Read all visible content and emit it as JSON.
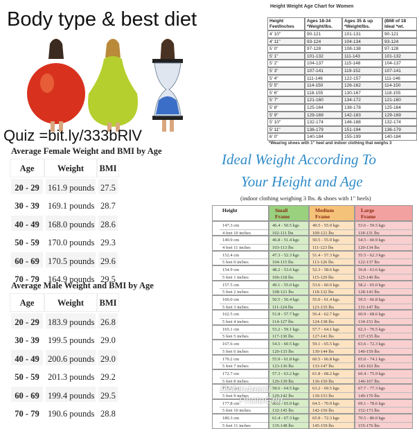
{
  "collage": {
    "title": "Body type & best diet",
    "quiz": "Quiz =bit.ly/333bRlV",
    "female_table": {
      "title": "Average Female Weight and BMI by Age",
      "header": [
        "Age",
        "Weight",
        "BMI"
      ],
      "rows": [
        [
          "20 - 29",
          "161.9 pounds",
          "27.5"
        ],
        [
          "30 - 39",
          "169.1 pounds",
          "28.7"
        ],
        [
          "40 - 49",
          "168.0 pounds",
          "28.6"
        ],
        [
          "50 - 59",
          "170.0 pounds",
          "29.3"
        ],
        [
          "60 - 69",
          "170.5 pounds",
          "29.6"
        ],
        [
          "70 - 79",
          "164.9 pounds",
          "29.5"
        ]
      ]
    },
    "male_table": {
      "title": "Average Male Weight and BMI by Age",
      "header": [
        "Age",
        "Weight",
        "BMI"
      ],
      "rows": [
        [
          "20 - 29",
          "183.9 pounds",
          "26.8"
        ],
        [
          "30 - 39",
          "199.5 pounds",
          "29.0"
        ],
        [
          "40 - 49",
          "200.6 pounds",
          "29.0"
        ],
        [
          "50 - 59",
          "201.3 pounds",
          "29.2"
        ],
        [
          "60 - 69",
          "199.4 pounds",
          "29.5"
        ],
        [
          "70 - 79",
          "190.6 pounds",
          "28.8"
        ]
      ]
    },
    "women_chart": {
      "title": "Height Weight Age Chart for Women",
      "header": [
        [
          "Height",
          "Feet/Inches"
        ],
        [
          "Ages 18-34",
          "*Weight/lbs."
        ],
        [
          "Ages 35 & up",
          "*Weight/lbs."
        ],
        [
          "(BMI of 18",
          "Ideal *wt."
        ]
      ],
      "rows": [
        [
          "4' 10\"",
          "90-121",
          "101-131",
          "90-121"
        ],
        [
          "4' 11\"",
          "93-124",
          "104-134",
          "93-124"
        ],
        [
          "5' 0\"",
          "97-128",
          "108-138",
          "97-128"
        ],
        [
          "5' 1\"",
          "101-132",
          "111-143",
          "101-132"
        ],
        [
          "5' 2\"",
          "104-137",
          "115-148",
          "104-137"
        ],
        [
          "5' 3\"",
          "107-141",
          "119-152",
          "107-141"
        ],
        [
          "5' 4\"",
          "111-146",
          "122-157",
          "111-146"
        ],
        [
          "5' 5\"",
          "114-150",
          "126-162",
          "114-150"
        ],
        [
          "5' 6\"",
          "118-155",
          "130-167",
          "118-155"
        ],
        [
          "5' 7\"",
          "121-160",
          "134-172",
          "121-160"
        ],
        [
          "5' 8\"",
          "125-164",
          "138-178",
          "125-164"
        ],
        [
          "5' 9\"",
          "129-169",
          "142-183",
          "129-169"
        ],
        [
          "5' 10\"",
          "132-174",
          "146-188",
          "132-174"
        ],
        [
          "5' 11\"",
          "136-179",
          "151-194",
          "136-179"
        ],
        [
          "6' 0\"",
          "140-184",
          "155-199",
          "140-184"
        ]
      ],
      "footnote": "*Wearing shoes with 1\" heel and indoor clothing that weighs 3"
    },
    "ideal": {
      "title_lines": [
        "Ideal Weight According To",
        "Your Height and Age"
      ],
      "subtitle": "(indoor clothing weighing 3 lbs. & shoes with 1\" heels)",
      "header": [
        [
          "Height"
        ],
        [
          "Small",
          "Frame"
        ],
        [
          "Medium",
          "Frame"
        ],
        [
          "Large",
          "Frame"
        ]
      ],
      "rows": [
        [
          [
            "147.3 cm",
            "4 feet 10 inches"
          ],
          [
            "46.4 - 50.5 kgs",
            "102-111 lbs"
          ],
          [
            "49.5 - 55.0 kgs",
            "109-121 lbs"
          ],
          [
            "53.6 - 59.5 kgs",
            "118-131 lbs"
          ]
        ],
        [
          [
            "149.9 cm",
            "4 feet 11 inches"
          ],
          [
            "46.8 - 51.4 kgs",
            "103-113 lbs"
          ],
          [
            "50.5 - 55.9 kgs",
            "111-123 lbs"
          ],
          [
            "54.5 - 60.9 kgs",
            "120-134 lbs"
          ]
        ],
        [
          [
            "152.4 cm",
            "5 feet 0 inches"
          ],
          [
            "47.3 - 52.3 kgs",
            "104-115 lbs"
          ],
          [
            "51.4 - 57.3 kgs",
            "113-126 lbs"
          ],
          [
            "55.5 - 62.3 kgs",
            "122-137 lbs"
          ]
        ],
        [
          [
            "154.9 cm",
            "5 feet 1 inches"
          ],
          [
            "48.2 - 53.6 kgs",
            "106-118 lbs"
          ],
          [
            "52.3 - 58.6 kgs",
            "115-129 lbs"
          ],
          [
            "56.8 - 63.6 kgs",
            "125-140 lbs"
          ]
        ],
        [
          [
            "157.5 cm",
            "5 feet 2 inches"
          ],
          [
            "49.1 - 55.0 kgs",
            "108-121 lbs"
          ],
          [
            "53.6 - 60.0 kgs",
            "118-132 lbs"
          ],
          [
            "58.2 - 65.0 kgs",
            "128-143 lbs"
          ]
        ],
        [
          [
            "160.0 cm",
            "5 feet 3 inches"
          ],
          [
            "50.5 - 56.4 kgs",
            "111-124 lbs"
          ],
          [
            "55.0 - 61.4 kgs",
            "121-135 lbs"
          ],
          [
            "59.5 - 66.8 kgs",
            "131-147 lbs"
          ]
        ],
        [
          [
            "162.5 cm",
            "5 feet 4 inches"
          ],
          [
            "51.8 - 57.7 kgs",
            "114-127 lbs"
          ],
          [
            "56.4 - 62.7 kgs",
            "124-138 lbs"
          ],
          [
            "60.9 - 68.6 kgs",
            "134-151 lbs"
          ]
        ],
        [
          [
            "165.1 cm",
            "5 feet 5 inches"
          ],
          [
            "53.2 - 59.1 kgs",
            "117-130 lbs"
          ],
          [
            "57.7 - 64.1 kgs",
            "127-141 lbs"
          ],
          [
            "62.3 - 70.5 kgs",
            "137-155 lbs"
          ]
        ],
        [
          [
            "167.6 cm",
            "5 feet 6 inches"
          ],
          [
            "54.5 - 60.5 kgs",
            "120-133 lbs"
          ],
          [
            "59.1 - 65.5 kgs",
            "130-144 lbs"
          ],
          [
            "63.6 - 72.3 kgs",
            "140-159 lbs"
          ]
        ],
        [
          [
            "170.2 cm",
            "5 feet 7 inches"
          ],
          [
            "55.9 - 61.8 kgs",
            "123-136 lbs"
          ],
          [
            "60.5 - 66.8 kgs",
            "133-147 lbs"
          ],
          [
            "65.0 - 74.1 kgs",
            "143-163 lbs"
          ]
        ],
        [
          [
            "172.7 cm",
            "5 feet 8 inches"
          ],
          [
            "57.3 - 63.2 kgs",
            "126-139 lbs"
          ],
          [
            "61.8 - 68.2 kgs",
            "136-150 lbs"
          ],
          [
            "66.4 - 75.9 kgs",
            "146-167 lbs"
          ]
        ],
        [
          [
            "175.3 cm",
            "5 feet 9 inches"
          ],
          [
            "58.6 - 64.5 kgs",
            "129-142 lbs"
          ],
          [
            "63.2 - 69.5 kgs",
            "139-153 lbs"
          ],
          [
            "67.7 - 77.3 kgs",
            "149-170 lbs"
          ]
        ],
        [
          [
            "177.8 cm",
            "5 feet 10 inches"
          ],
          [
            "60.0 - 65.9 kgs",
            "132-145 lbs"
          ],
          [
            "64.5 - 70.9 kgs",
            "142-156 lbs"
          ],
          [
            "69.1 - 78.6 kgs",
            "152-173 lbs"
          ]
        ],
        [
          [
            "180.3 cm",
            "5 feet 11 inches"
          ],
          [
            "61.4 - 67.3 kgs",
            "135-148 lbs"
          ],
          [
            "65.9 - 72.3 kgs",
            "145-159 lbs"
          ],
          [
            "70.5 - 80.0 kgs",
            "155-176 lbs"
          ]
        ]
      ]
    },
    "watermark": [
      "Robin4ascil",
      "PhotoGrid"
    ]
  }
}
